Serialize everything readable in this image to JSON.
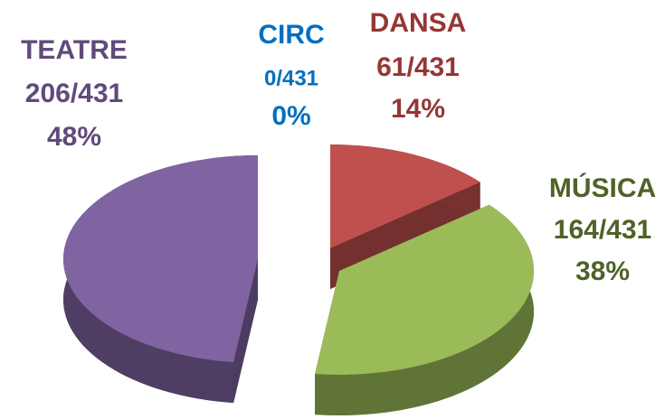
{
  "chart_data": {
    "type": "pie3d",
    "categories": [
      "CIRC",
      "DANSA",
      "MÚSICA",
      "TEATRE"
    ],
    "count_labels": [
      "0/431",
      "61/431",
      "164/431",
      "206/431"
    ],
    "values": [
      0,
      14,
      38,
      48
    ],
    "value_labels": [
      "0%",
      "14%",
      "38%",
      "48%"
    ],
    "colors": [
      "#0070c0",
      "#c0504d",
      "#9bbb59",
      "#8064a2"
    ],
    "label_colors": [
      "#0070c0",
      "#953735",
      "#4f6228",
      "#604a7b"
    ]
  }
}
